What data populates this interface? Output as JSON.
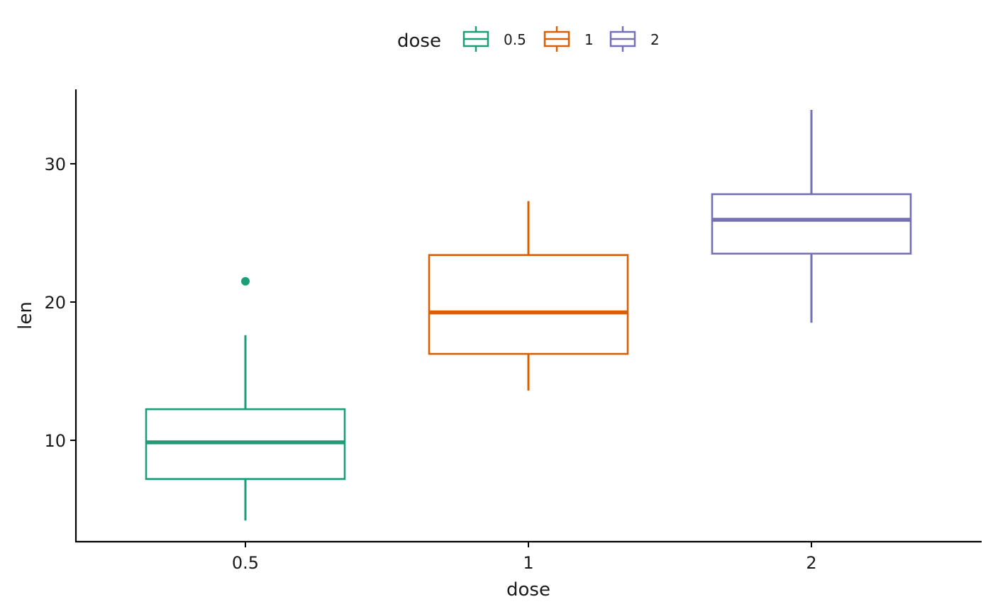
{
  "chart_data": {
    "type": "boxplot",
    "title": "",
    "xlabel": "dose",
    "ylabel": "len",
    "ylim": [
      3,
      35
    ],
    "y_ticks": [
      10,
      20,
      30
    ],
    "categories": [
      "0.5",
      "1",
      "2"
    ],
    "legend": {
      "title": "dose",
      "position": "top",
      "entries": [
        "0.5",
        "1",
        "2"
      ]
    },
    "grid": false,
    "series": [
      {
        "category": "0.5",
        "color": "#1b9e77",
        "min": 4.2,
        "q1": 7.2,
        "median": 9.85,
        "q3": 12.25,
        "max": 17.6,
        "outliers": [
          21.5
        ]
      },
      {
        "category": "1",
        "color": "#d95f02",
        "min": 13.6,
        "q1": 16.25,
        "median": 19.25,
        "q3": 23.4,
        "max": 27.3,
        "outliers": []
      },
      {
        "category": "2",
        "color": "#7570b3",
        "min": 18.5,
        "q1": 23.5,
        "median": 25.95,
        "q3": 27.8,
        "max": 33.9,
        "outliers": []
      }
    ]
  }
}
